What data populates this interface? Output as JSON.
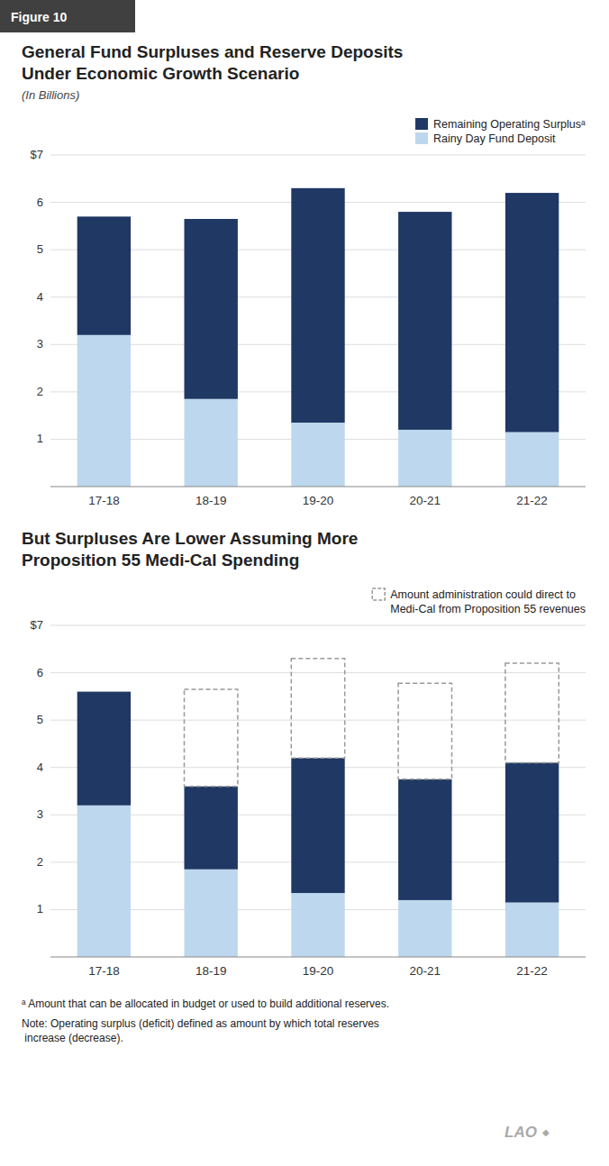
{
  "chart_data": [
    {
      "type": "bar",
      "stacked": true,
      "grid": true,
      "legend": "upper right",
      "title": "General Fund Surpluses and Reserve Deposits\nUnder Economic Growth Scenario",
      "subtitle": "(In Billions)",
      "categories": [
        "17-18",
        "18-19",
        "19-20",
        "20-21",
        "21-22"
      ],
      "series": [
        {
          "name": "Rainy Day Fund Deposit",
          "color": "#BDD7EE",
          "values": [
            3.2,
            1.85,
            1.35,
            1.2,
            1.15
          ]
        },
        {
          "name": "Remaining Operating Surplusᵃ",
          "color": "#1F3864",
          "values": [
            2.5,
            3.8,
            4.95,
            4.6,
            5.05
          ]
        }
      ],
      "ylim": [
        0,
        7
      ],
      "yticks": [
        1,
        2,
        3,
        4,
        5,
        6,
        {
          "value": 7,
          "label": "$7"
        }
      ],
      "annotations": [
        "Figure 10"
      ]
    },
    {
      "type": "bar",
      "stacked": true,
      "grid": true,
      "legend": "upper right",
      "title": "But Surpluses Are Lower Assuming More\nProposition 55 Medi-Cal Spending",
      "categories": [
        "17-18",
        "18-19",
        "19-20",
        "20-21",
        "21-22"
      ],
      "series": [
        {
          "color": "#BDD7EE",
          "values": [
            3.2,
            1.85,
            1.35,
            1.2,
            1.15
          ]
        },
        {
          "color": "#1F3864",
          "values": [
            2.4,
            1.75,
            2.85,
            2.55,
            2.95
          ]
        },
        {
          "name": "Amount administration could direct to\nMedi-Cal from Proposition 55 revenues",
          "color": "#999999",
          "line_style": "dashed",
          "values": [
            null,
            2.05,
            2.1,
            2.03,
            2.1
          ]
        }
      ],
      "ylim": [
        0,
        7
      ],
      "yticks": [
        1,
        2,
        3,
        4,
        5,
        6,
        {
          "value": 7,
          "label": "$7"
        }
      ],
      "annotations": [
        "ᵃ Amount that can be allocated in budget or used to build additional reserves.",
        "  Note: Operating surplus (deficit) defined as amount by which total reserves\n  increase (decrease).",
        "LAO",
        "◆"
      ]
    }
  ]
}
